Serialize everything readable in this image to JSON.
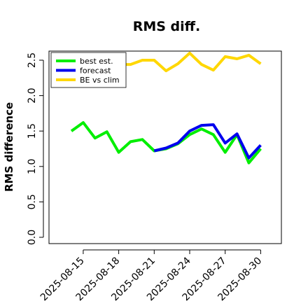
{
  "chart_data": {
    "type": "line",
    "title": "RMS diff.",
    "xlabel": "",
    "ylabel": "RMS difference",
    "x": [
      "2025-08-14",
      "2025-08-15",
      "2025-08-16",
      "2025-08-17",
      "2025-08-18",
      "2025-08-19",
      "2025-08-20",
      "2025-08-21",
      "2025-08-22",
      "2025-08-23",
      "2025-08-24",
      "2025-08-25",
      "2025-08-26",
      "2025-08-27",
      "2025-08-28",
      "2025-08-29",
      "2025-08-30"
    ],
    "xticks": [
      "2025-08-15",
      "2025-08-18",
      "2025-08-21",
      "2025-08-24",
      "2025-08-27",
      "2025-08-30"
    ],
    "highlight_tick": "2025-08-21",
    "highlight_color": "#2e8b22",
    "yticks": [
      "0.0",
      "0.5",
      "1.0",
      "1.5",
      "2.0",
      "2.5"
    ],
    "ylim": [
      -0.05,
      2.62
    ],
    "grid": false,
    "legend_position": "top-left",
    "series": [
      {
        "name": "best est.",
        "color": "#00ee00",
        "values": [
          1.5,
          1.62,
          1.4,
          1.49,
          1.2,
          1.35,
          1.38,
          1.22,
          1.25,
          1.32,
          1.45,
          1.53,
          1.45,
          1.2,
          1.45,
          1.05,
          1.25
        ]
      },
      {
        "name": "forecast",
        "color": "#0000ee",
        "values": [
          null,
          null,
          null,
          null,
          null,
          null,
          null,
          1.22,
          1.26,
          1.33,
          1.5,
          1.58,
          1.59,
          1.33,
          1.46,
          1.12,
          1.3
        ]
      },
      {
        "name": "BE vs clim",
        "color": "#ffd700",
        "values": [
          null,
          null,
          null,
          2.46,
          2.44,
          2.44,
          2.5,
          2.5,
          2.35,
          2.45,
          2.6,
          2.44,
          2.36,
          2.55,
          2.52,
          2.57,
          2.45
        ]
      }
    ]
  }
}
